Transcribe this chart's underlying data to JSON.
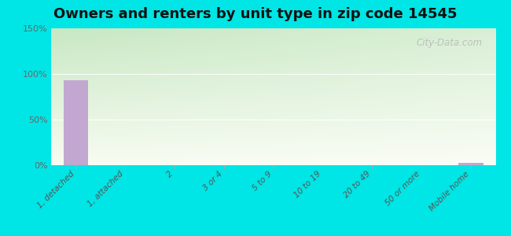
{
  "title": "Owners and renters by unit type in zip code 14545",
  "categories": [
    "1, detached",
    "1, attached",
    "2",
    "3 or 4",
    "5 to 9",
    "10 to 19",
    "20 to 49",
    "50 or more",
    "Mobile home"
  ],
  "values": [
    93,
    0,
    0,
    0,
    0,
    0,
    0,
    0,
    3
  ],
  "bar_color": "#c2a8d0",
  "ylim": [
    0,
    150
  ],
  "yticks": [
    0,
    50,
    100,
    150
  ],
  "ytick_labels": [
    "0%",
    "50%",
    "100%",
    "150%"
  ],
  "bg_outer": "#00e5e5",
  "bg_top_color": "#c8e8c0",
  "bg_bottom_color": "#f8faf0",
  "grid_color": "#e0e8d8",
  "title_fontsize": 13,
  "tick_fontsize": 8,
  "watermark": "City-Data.com"
}
